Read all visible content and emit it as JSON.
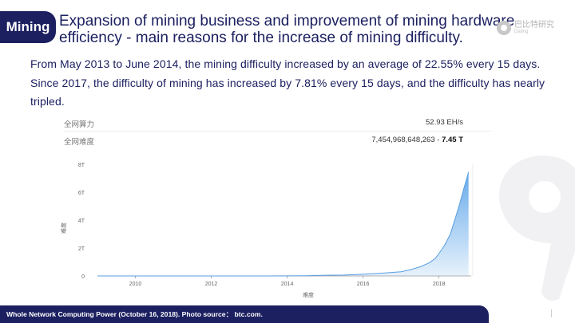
{
  "tag": "Mining",
  "title_line1": "Expansion of mining business and improvement of mining hardware",
  "title_line2": "efficiency - main reasons for the increase of mining difficulty.",
  "logo": {
    "name": "巴比特研究",
    "sub": "Dating"
  },
  "body_text": "From May 2013 to June 2014, the mining difficulty increased by an average of 22.55% every 15 days. Since 2017, the difficulty of mining has increased by 7.81% every 15 days, and the difficulty has nearly tripled.",
  "stats": {
    "hashrate_label": "全网算力",
    "hashrate_value": "52.93 EH/s",
    "difficulty_label": "全网难度",
    "difficulty_value_prefix": "7,454,968,648,263 - ",
    "difficulty_value_short": "7.45 T"
  },
  "footer": "Whole Network Computing Power (October 16, 2018).  Photo source： btc.com.",
  "colors": {
    "navy": "#1c2060",
    "area_fill": "#5fa6ea",
    "line": "#5a9de0"
  },
  "chart_data": {
    "type": "area",
    "title": "",
    "xlabel": "难度",
    "ylabel": "难度",
    "x_ticks": [
      "2010",
      "2012",
      "2014",
      "2016",
      "2018"
    ],
    "y_ticks": [
      "0",
      "2T",
      "4T",
      "6T",
      "8T"
    ],
    "xlim": [
      2009.0,
      2018.85
    ],
    "ylim": [
      0,
      8
    ],
    "grid": false,
    "series": [
      {
        "x": [
          2009.0,
          2011.0,
          2012.0,
          2013.0,
          2013.5,
          2014.0,
          2014.5,
          2015.0,
          2015.5,
          2016.0,
          2016.5,
          2017.0,
          2017.25,
          2017.5,
          2017.75,
          2017.9,
          2018.0,
          2018.15,
          2018.3,
          2018.45,
          2018.55,
          2018.65,
          2018.78
        ],
        "y": [
          0,
          0,
          0,
          0,
          0.001,
          0.005,
          0.02,
          0.05,
          0.06,
          0.12,
          0.2,
          0.3,
          0.45,
          0.65,
          0.95,
          1.25,
          1.6,
          2.2,
          3.0,
          4.3,
          5.2,
          6.2,
          7.45
        ]
      }
    ]
  }
}
